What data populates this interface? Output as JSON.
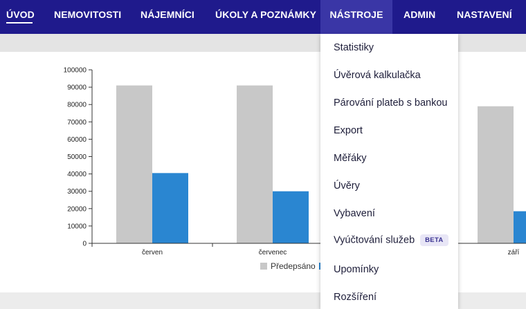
{
  "nav": {
    "items": [
      {
        "label": "ÚVOD"
      },
      {
        "label": "NEMOVITOSTI"
      },
      {
        "label": "NÁJEMNÍCI"
      },
      {
        "label": "ÚKOLY A POZNÁMKY"
      },
      {
        "label": "NÁSTROJE"
      },
      {
        "label": "ADMIN"
      },
      {
        "label": "NASTAVENÍ"
      }
    ]
  },
  "dropdown": {
    "items": [
      {
        "label": "Statistiky"
      },
      {
        "label": "Úvěrová kalkulačka"
      },
      {
        "label": "Párování plateb s bankou"
      },
      {
        "label": "Export"
      },
      {
        "label": "Měřáky"
      },
      {
        "label": "Úvěry"
      },
      {
        "label": "Vybavení"
      },
      {
        "label": "Vyúčtování služeb",
        "badge": "BETA"
      },
      {
        "label": "Upomínky"
      },
      {
        "label": "Rozšíření"
      }
    ]
  },
  "colors": {
    "nav_bg": "#1f1a8c",
    "series_predepsano": "#c8c8c8",
    "series_second": "#2a86d1"
  },
  "chart_data": {
    "type": "bar",
    "categories": [
      "červen",
      "červenec",
      "",
      "září"
    ],
    "yticks": [
      "0",
      "10000",
      "20000",
      "30000",
      "40000",
      "50000",
      "60000",
      "70000",
      "80000",
      "90000",
      "100000"
    ],
    "ylim": [
      0,
      100000
    ],
    "series": [
      {
        "name": "Předepsáno",
        "values": [
          91000,
          91000,
          null,
          79000
        ]
      },
      {
        "values": [
          40500,
          30000,
          null,
          18500
        ]
      }
    ],
    "legend_placement": "bottom"
  }
}
